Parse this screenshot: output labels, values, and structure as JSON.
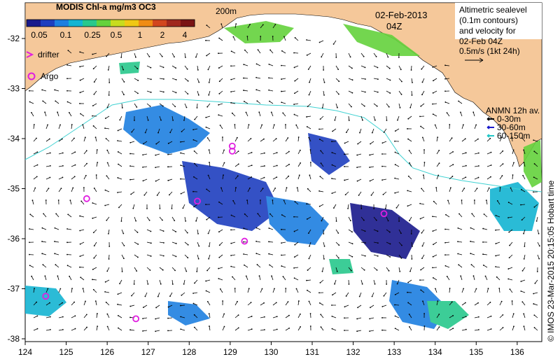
{
  "colorbar": {
    "title": "MODIS Chl-a mg/m3 OC3",
    "ticks": [
      "0.05",
      "0.1",
      "0.25",
      "0.5",
      "1",
      "2",
      "4"
    ],
    "colors": [
      "#1a1a8c",
      "#1f3fbf",
      "#1e7fe0",
      "#14b4d2",
      "#28c88c",
      "#64d23c",
      "#c8dc1e",
      "#f0c814",
      "#f08c14",
      "#d2461e",
      "#a0281e",
      "#7a1414"
    ]
  },
  "legend_left": {
    "drifter_label": "drifter",
    "argo_label": "Argo",
    "marker_color": "#e01ee0"
  },
  "header": {
    "date": "02-Feb-2013",
    "time": "04Z",
    "isobath_label": "200m"
  },
  "legend_right": {
    "line1": "Altimetric sealevel",
    "line2": "(0.1m contours)",
    "line3": "and velocity for",
    "line4": "02-Feb 04Z",
    "scale_label": "0.5m/s (1kt 24h)"
  },
  "anmn_legend": {
    "title": "ANMN 12h av.",
    "items": [
      {
        "label": "0-30m",
        "color": "#000000"
      },
      {
        "label": "30-60m",
        "color": "#1a1acc"
      },
      {
        "label": "60-150m",
        "color": "#22c8c8"
      }
    ]
  },
  "axes": {
    "x_ticks": [
      "124",
      "125",
      "126",
      "127",
      "128",
      "129",
      "130",
      "131",
      "132",
      "133",
      "134",
      "135",
      "136"
    ],
    "y_ticks": [
      "-32",
      "-33",
      "-34",
      "-35",
      "-36",
      "-37",
      "-38"
    ]
  },
  "credit": "© IMOS 23-Mar-2015 20:15:05 Hobart time",
  "colors": {
    "land": "#f5c89a",
    "isobath": "#40d2d2",
    "arrow": "#000000"
  },
  "argo_floats": [
    {
      "lon": 125.5,
      "lat": -35.2
    },
    {
      "lon": 128.2,
      "lat": -35.25
    },
    {
      "lon": 129.05,
      "lat": -34.15
    },
    {
      "lon": 129.05,
      "lat": -34.25
    },
    {
      "lon": 129.35,
      "lat": -36.05
    },
    {
      "lon": 132.75,
      "lat": -35.5
    },
    {
      "lon": 124.5,
      "lat": -37.15
    },
    {
      "lon": 126.7,
      "lat": -37.6
    }
  ]
}
